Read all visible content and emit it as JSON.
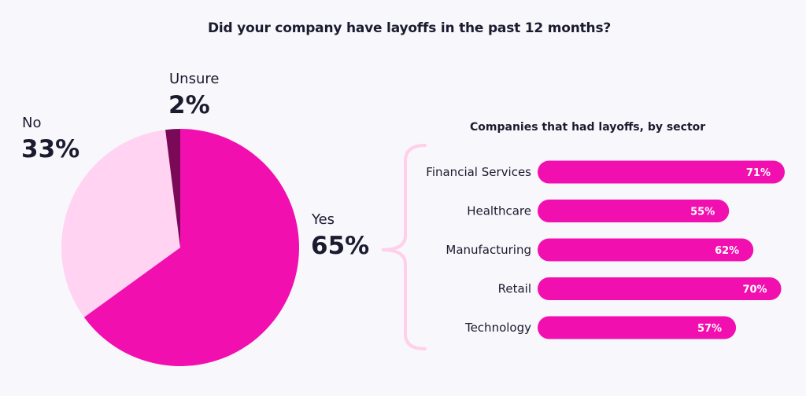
{
  "title": "Did your company have layoffs in the past 12 months?",
  "colors": {
    "yes": "#f20fb0",
    "no": "#ffd3f1",
    "unsure": "#7a0a58",
    "bar": "#f20fb0",
    "brace": "#ffd0ea",
    "text": "#1b1b2f",
    "background": "#f8f7fc"
  },
  "chart_data": [
    {
      "type": "pie",
      "title": "Did your company have layoffs in the past 12 months?",
      "slices": [
        {
          "label": "Yes",
          "value": 65,
          "display": "65%"
        },
        {
          "label": "No",
          "value": 33,
          "display": "33%"
        },
        {
          "label": "Unsure",
          "value": 2,
          "display": "2%"
        }
      ]
    },
    {
      "type": "bar",
      "orientation": "horizontal",
      "title": "Companies that had layoffs, by sector",
      "categories": [
        "Financial Services",
        "Healthcare",
        "Manufacturing",
        "Retail",
        "Technology"
      ],
      "values": [
        71,
        55,
        62,
        70,
        57
      ],
      "value_labels": [
        "71%",
        "55%",
        "62%",
        "70%",
        "57%"
      ]
    }
  ]
}
